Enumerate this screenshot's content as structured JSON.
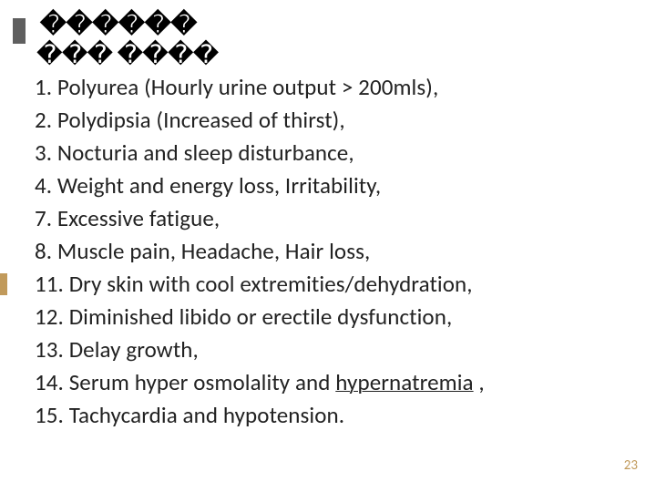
{
  "title_glyphs": "������",
  "overlay_glyphs": "��� ����",
  "items": [
    {
      "n": "1.",
      "text": "Polyurea (Hourly urine output > 200mls),"
    },
    {
      "n": "2.",
      "text": "Polydipsia (Increased of thirst),"
    },
    {
      "n": "3.",
      "text": "Nocturia and sleep disturbance,"
    },
    {
      "n": "4.",
      "text": "Weight and energy loss,  Irritability,"
    },
    {
      "n": "7.",
      "text": "Excessive fatigue,"
    },
    {
      "n": "8.",
      "text": "Muscle pain, Headache, Hair loss,"
    },
    {
      "n": "11.",
      "text": "Dry skin with cool extremities/dehydration,"
    },
    {
      "n": "12.",
      "text": "Diminished libido or erectile dysfunction,"
    },
    {
      "n": "13.",
      "text": "Delay growth,"
    },
    {
      "n": "14.",
      "text_pre": "Serum hyper osmolality and ",
      "underline": "hypernatremia",
      "text_post": " ,"
    },
    {
      "n": "15.",
      "text": "Tachycardia and hypotension."
    }
  ],
  "page_number": "23",
  "colors": {
    "bullet": "#5f5f5f",
    "text": "#222222",
    "page_num": "#c19a5b",
    "accent": "#c19a5b",
    "bg": "#ffffff"
  },
  "font": {
    "family": "Calibri",
    "title_size": 28,
    "body_size": 25,
    "pagenum_size": 15
  }
}
